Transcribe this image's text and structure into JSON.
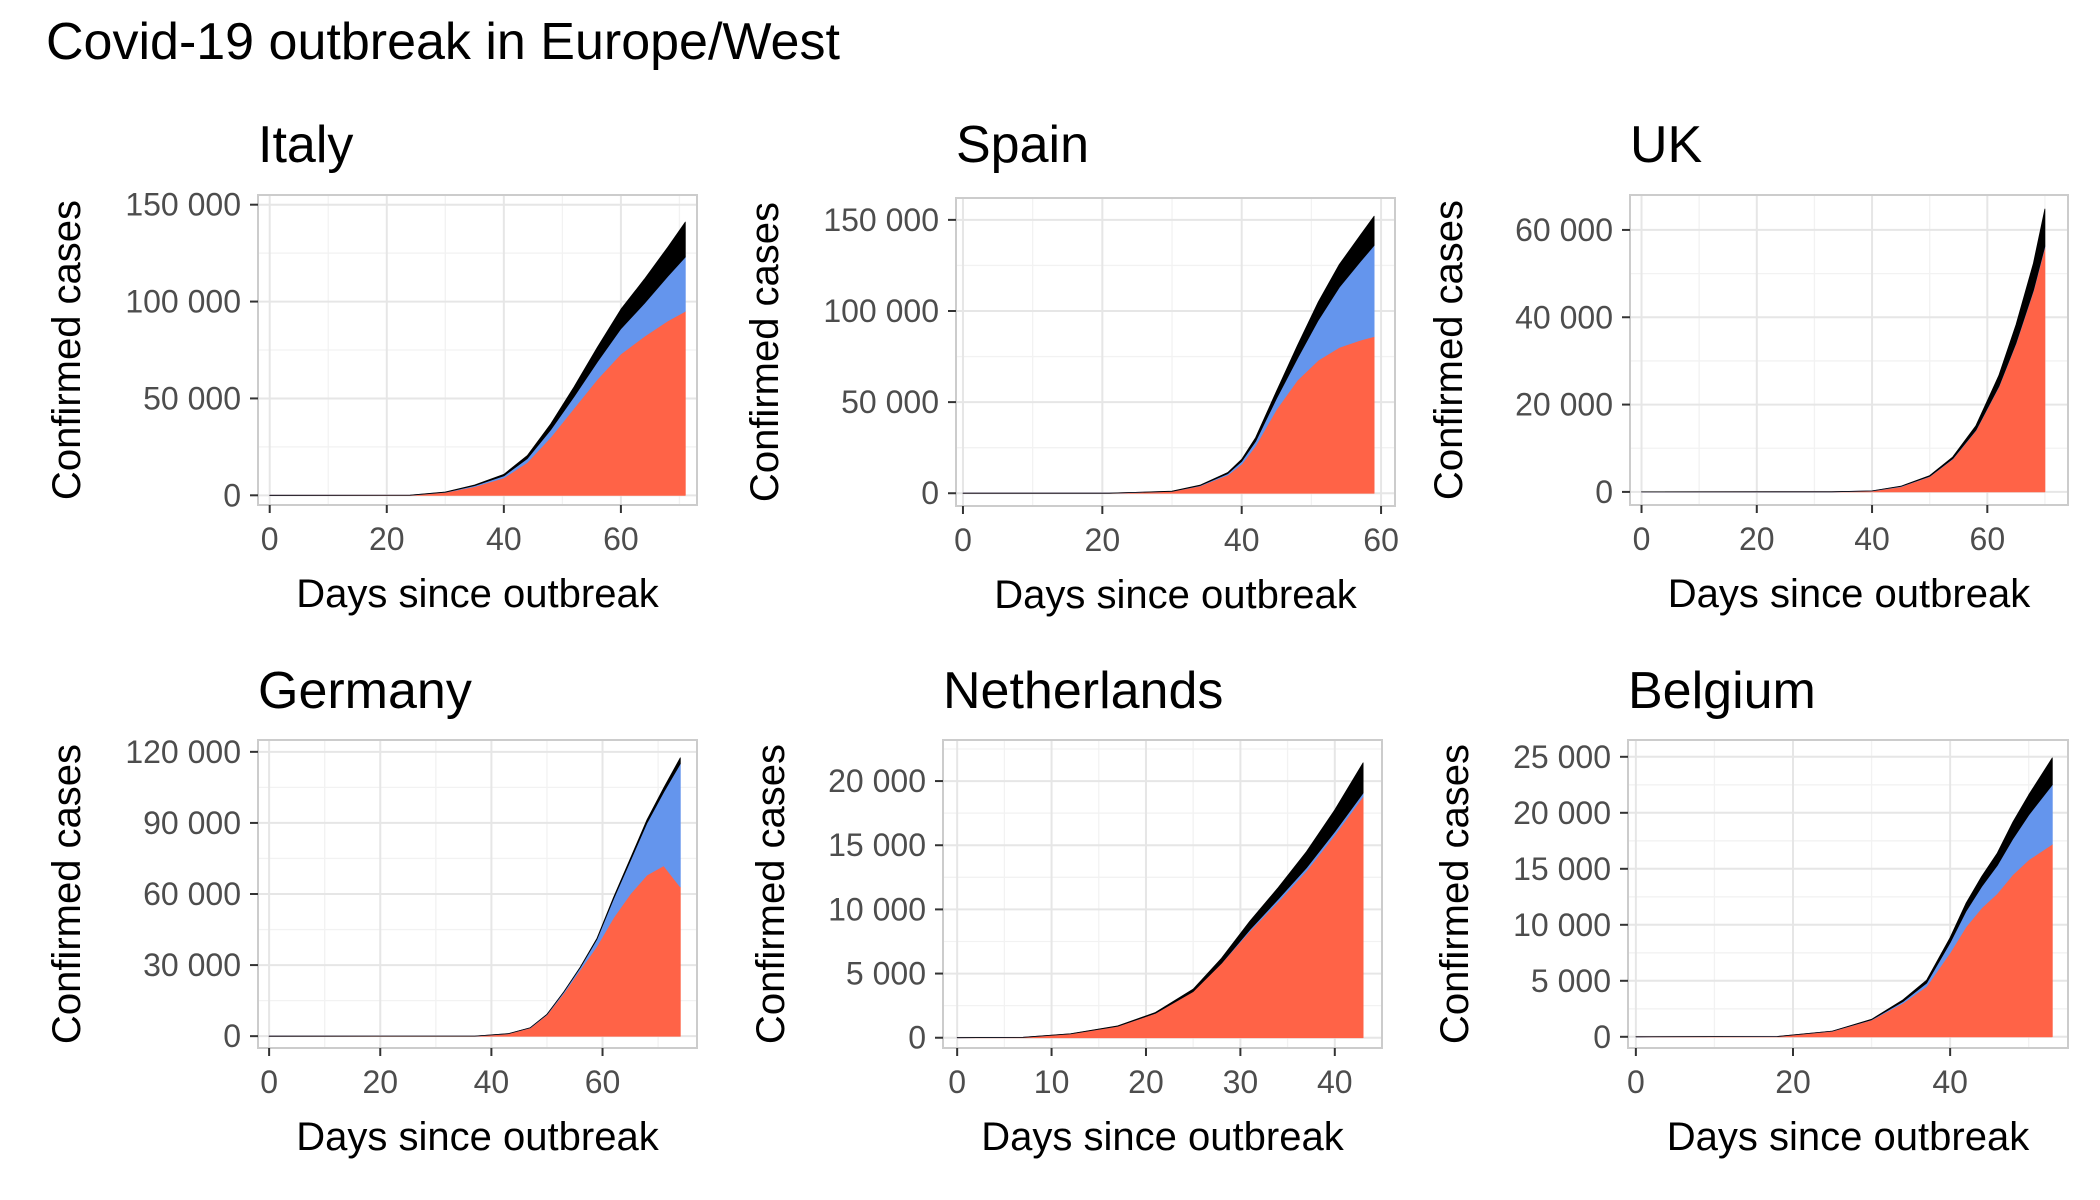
{
  "title": "Covid-19 outbreak in Europe/West",
  "colors": {
    "deaths": "#000000",
    "recovered": "#6495ED",
    "active": "#FF6347",
    "grid": "#E6E6E6",
    "panel_border": "#CCCCCC",
    "tick_text": "#4D4D4D"
  },
  "chart_data": [
    {
      "type": "area",
      "title": "Italy",
      "xlabel": "Days since outbreak",
      "ylabel": "Confirmed cases",
      "xlim": [
        -2,
        73
      ],
      "ylim": [
        -5000,
        155000
      ],
      "xticks": [
        0,
        20,
        40,
        60
      ],
      "yticks": [
        0,
        50000,
        100000,
        150000
      ],
      "ytick_labels": [
        "0",
        "50 000",
        "100 000",
        "150 000"
      ],
      "x": [
        0,
        24,
        30,
        35,
        40,
        44,
        48,
        52,
        56,
        60,
        64,
        68,
        71
      ],
      "series": [
        {
          "key": "active",
          "values": [
            0,
            50,
            1500,
            4500,
            9000,
            17000,
            30000,
            45000,
            60000,
            73000,
            82000,
            90000,
            95000
          ]
        },
        {
          "key": "recovered",
          "values": [
            0,
            0,
            100,
            500,
            1000,
            2000,
            3800,
            6000,
            9000,
            13000,
            17000,
            23000,
            28000
          ]
        },
        {
          "key": "deaths",
          "values": [
            0,
            0,
            100,
            300,
            800,
            1500,
            3000,
            5000,
            7500,
            10000,
            12500,
            15000,
            18000
          ]
        }
      ]
    },
    {
      "type": "area",
      "title": "Spain",
      "xlabel": "Days since outbreak",
      "ylabel": "Confirmed cases",
      "xlim": [
        -1,
        62
      ],
      "ylim": [
        -7000,
        162000
      ],
      "xticks": [
        0,
        20,
        40,
        60
      ],
      "yticks": [
        0,
        50000,
        100000,
        150000
      ],
      "ytick_labels": [
        "0",
        "50 000",
        "100 000",
        "150 000"
      ],
      "x": [
        0,
        21,
        30,
        34,
        38,
        40,
        42,
        45,
        48,
        51,
        54,
        57,
        59
      ],
      "series": [
        {
          "key": "active",
          "values": [
            0,
            50,
            1000,
            4000,
            10000,
            16000,
            26000,
            46000,
            62000,
            73000,
            80000,
            84000,
            86000
          ]
        },
        {
          "key": "recovered",
          "values": [
            0,
            0,
            50,
            200,
            800,
            1500,
            2500,
            6000,
            12000,
            22000,
            33000,
            43000,
            50000
          ]
        },
        {
          "key": "deaths",
          "values": [
            0,
            0,
            50,
            200,
            600,
            1100,
            2000,
            4000,
            7000,
            10000,
            12500,
            14500,
            16000
          ]
        }
      ]
    },
    {
      "type": "area",
      "title": "UK",
      "xlabel": "Days since outbreak",
      "ylabel": "Confirmed cases",
      "xlim": [
        -2,
        74
      ],
      "ylim": [
        -3000,
        68000
      ],
      "xticks": [
        0,
        20,
        40,
        60
      ],
      "yticks": [
        0,
        20000,
        40000,
        60000
      ],
      "ytick_labels": [
        "0",
        "20 000",
        "40 000",
        "60 000"
      ],
      "x": [
        0,
        33,
        40,
        45,
        50,
        54,
        58,
        62,
        65,
        68,
        70
      ],
      "series": [
        {
          "key": "active",
          "values": [
            0,
            20,
            200,
            1200,
            3500,
            7500,
            14000,
            24000,
            34000,
            46000,
            56000
          ]
        },
        {
          "key": "recovered",
          "values": [
            0,
            0,
            20,
            50,
            80,
            100,
            120,
            135,
            140,
            150,
            300
          ]
        },
        {
          "key": "deaths",
          "values": [
            0,
            0,
            10,
            50,
            150,
            400,
            1000,
            2500,
            4200,
            6200,
            8500
          ]
        }
      ]
    },
    {
      "type": "area",
      "title": "Germany",
      "xlabel": "Days since outbreak",
      "ylabel": "Confirmed cases",
      "xlim": [
        -2,
        77
      ],
      "ylim": [
        -5000,
        125000
      ],
      "xticks": [
        0,
        20,
        40,
        60
      ],
      "yticks": [
        0,
        30000,
        60000,
        90000,
        120000
      ],
      "ytick_labels": [
        "0",
        "30 000",
        "60 000",
        "90 000",
        "120 000"
      ],
      "x": [
        0,
        37,
        43,
        47,
        50,
        53,
        56,
        59,
        62,
        65,
        68,
        71,
        74
      ],
      "series": [
        {
          "key": "active",
          "values": [
            0,
            20,
            1000,
            3500,
            9000,
            18000,
            28000,
            38000,
            50000,
            60000,
            68000,
            72000,
            63000
          ]
        },
        {
          "key": "recovered",
          "values": [
            0,
            0,
            20,
            60,
            200,
            500,
            1000,
            3000,
            8000,
            14000,
            22000,
            31000,
            52000
          ]
        },
        {
          "key": "deaths",
          "values": [
            0,
            0,
            5,
            15,
            40,
            80,
            150,
            300,
            600,
            900,
            1300,
            1800,
            2500
          ]
        }
      ]
    },
    {
      "type": "area",
      "title": "Netherlands",
      "xlabel": "Days since outbreak",
      "ylabel": "Confirmed cases",
      "xlim": [
        -1.5,
        45
      ],
      "ylim": [
        -800,
        23200
      ],
      "xticks": [
        0,
        10,
        20,
        30,
        40
      ],
      "yticks": [
        0,
        5000,
        10000,
        15000,
        20000
      ],
      "ytick_labels": [
        "0",
        "5 000",
        "10 000",
        "15 000",
        "20 000"
      ],
      "x": [
        0,
        7,
        12,
        17,
        21,
        25,
        28,
        31,
        34,
        37,
        40,
        43
      ],
      "series": [
        {
          "key": "active",
          "values": [
            0,
            30,
            300,
            900,
            1900,
            3600,
            5800,
            8300,
            10600,
            13000,
            15800,
            18800
          ]
        },
        {
          "key": "recovered",
          "values": [
            0,
            0,
            0,
            2,
            4,
            6,
            8,
            120,
            200,
            250,
            260,
            270
          ]
        },
        {
          "key": "deaths",
          "values": [
            0,
            0,
            5,
            20,
            60,
            180,
            380,
            650,
            900,
            1250,
            1700,
            2350
          ]
        }
      ]
    },
    {
      "type": "area",
      "title": "Belgium",
      "xlabel": "Days since outbreak",
      "ylabel": "Confirmed cases",
      "xlim": [
        -1,
        55
      ],
      "ylim": [
        -1000,
        26500
      ],
      "xticks": [
        0,
        20,
        40
      ],
      "yticks": [
        0,
        5000,
        10000,
        15000,
        20000,
        25000
      ],
      "ytick_labels": [
        "0",
        "5 000",
        "10 000",
        "15 000",
        "20 000",
        "25 000"
      ],
      "x": [
        0,
        18,
        25,
        30,
        34,
        37,
        40,
        42,
        44,
        46,
        48,
        50,
        53
      ],
      "series": [
        {
          "key": "active",
          "values": [
            0,
            30,
            500,
            1500,
            3000,
            4500,
            7500,
            9800,
            11500,
            12800,
            14500,
            15800,
            17200
          ]
        },
        {
          "key": "recovered",
          "values": [
            0,
            0,
            5,
            30,
            150,
            300,
            900,
            1400,
            1900,
            2500,
            3200,
            4000,
            5300
          ]
        },
        {
          "key": "deaths",
          "values": [
            0,
            0,
            5,
            30,
            150,
            250,
            450,
            700,
            900,
            1100,
            1500,
            1800,
            2400
          ]
        }
      ]
    }
  ]
}
